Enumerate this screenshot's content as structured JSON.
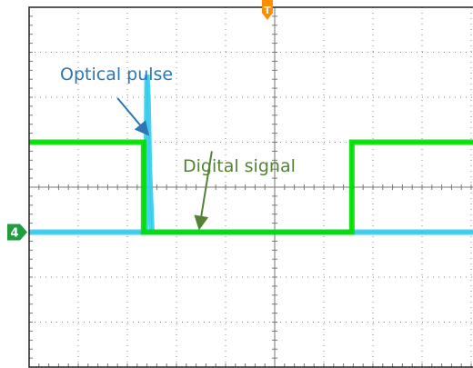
{
  "chart_data": {
    "type": "line",
    "title": "",
    "xlabel": "",
    "ylabel": "",
    "grid": true,
    "xlim": [
      0,
      10
    ],
    "ylim": [
      -4,
      4
    ],
    "trigger_marker": "T",
    "channel_marker": "4",
    "series": [
      {
        "color": "#00dd00",
        "x": [
          0,
          2.33,
          2.33,
          6.57,
          6.57,
          10
        ],
        "y": [
          1.0,
          1.0,
          -1.0,
          -1.0,
          1.0,
          1.0
        ]
      },
      {
        "color": "#33ccee",
        "x": [
          0,
          2.38,
          2.4,
          2.42,
          2.45,
          2.5,
          10
        ],
        "y": [
          -1.0,
          -1.0,
          2.5,
          2.0,
          0.4,
          -1.0,
          -1.0
        ]
      }
    ],
    "annotations": [
      {
        "text": "Optical pulse",
        "color": "#2e75b6",
        "x_from": 1.8,
        "y_from": 1.98,
        "x_to": 2.4,
        "y_to": 1.2
      },
      {
        "text": "Digital signal",
        "color": "#548235",
        "x_from": 3.72,
        "y_from": 0.8,
        "x_to": 3.47,
        "y_to": -0.88
      }
    ]
  }
}
